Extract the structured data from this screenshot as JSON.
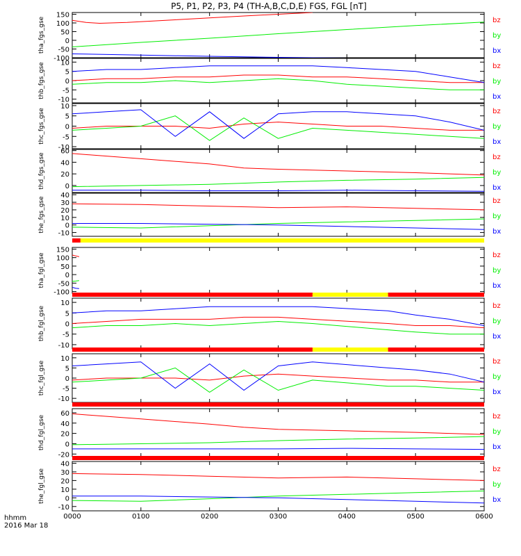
{
  "title": "P5, P1, P2, P3, P4 (TH-A,B,C,D,E) FGS, FGL [nT]",
  "footer": {
    "unit_label": "hhmm",
    "date_label": "2016 Mar 18"
  },
  "colors": {
    "bz": "#ff0000",
    "by": "#00ee00",
    "bx": "#0000ff",
    "flag_red": "#ff0000",
    "flag_yellow": "#ffff00",
    "flag_black": "#000000"
  },
  "chart_data": [
    {
      "type": "line",
      "title": "",
      "ylabel": "tha_fgs_gse",
      "ylim": [
        -100,
        160
      ],
      "yticks": [
        150,
        100,
        50,
        0,
        -50,
        -100
      ],
      "xlim": [
        0,
        600
      ],
      "series": [
        {
          "name": "bz",
          "x": [
            0,
            20,
            40,
            80,
            150,
            250,
            350
          ],
          "y": [
            115,
            103,
            98,
            103,
            118,
            140,
            160
          ]
        },
        {
          "name": "by",
          "x": [
            0,
            100,
            200,
            300,
            400,
            500,
            600
          ],
          "y": [
            -38,
            -12,
            12,
            38,
            62,
            85,
            105
          ]
        },
        {
          "name": "bx",
          "x": [
            0,
            100,
            200,
            300,
            400,
            500,
            600
          ],
          "y": [
            -78,
            -85,
            -92,
            -98,
            -102,
            -104,
            -105
          ]
        }
      ]
    },
    {
      "type": "line",
      "title": "",
      "ylabel": "thb_fgs_gse",
      "ylim": [
        -12,
        12
      ],
      "yticks": [
        10,
        5,
        0,
        -5,
        -10
      ],
      "xlim": [
        0,
        600
      ],
      "series": [
        {
          "name": "bz",
          "x": [
            0,
            50,
            100,
            150,
            200,
            250,
            300,
            350,
            400,
            450,
            500,
            550,
            600
          ],
          "y": [
            0,
            1,
            1,
            2,
            2,
            3,
            3,
            2,
            2,
            1,
            0,
            -1,
            -1
          ]
        },
        {
          "name": "by",
          "x": [
            0,
            50,
            100,
            150,
            200,
            250,
            300,
            350,
            400,
            450,
            500,
            550,
            600
          ],
          "y": [
            -2,
            -1,
            -1,
            0,
            -1,
            0,
            1,
            0,
            -2,
            -3,
            -4,
            -5,
            -5
          ]
        },
        {
          "name": "bx",
          "x": [
            0,
            50,
            100,
            150,
            200,
            250,
            300,
            350,
            400,
            450,
            500,
            550,
            600
          ],
          "y": [
            5,
            6,
            6,
            7,
            8,
            8,
            8,
            8,
            7,
            6,
            5,
            2,
            -1
          ]
        }
      ]
    },
    {
      "type": "line",
      "title": "",
      "ylabel": "thc_fgs_gse",
      "ylim": [
        -11,
        11
      ],
      "yticks": [
        10,
        5,
        0,
        -5,
        -10
      ],
      "xlim": [
        0,
        600
      ],
      "series": [
        {
          "name": "bz",
          "x": [
            0,
            50,
            100,
            150,
            200,
            250,
            300,
            350,
            400,
            450,
            500,
            550,
            600
          ],
          "y": [
            -1,
            0,
            0,
            0,
            -1,
            1,
            2,
            1,
            0,
            0,
            -1,
            -2,
            -2
          ]
        },
        {
          "name": "by",
          "x": [
            0,
            50,
            100,
            150,
            200,
            250,
            300,
            350,
            400,
            450,
            500,
            550,
            600
          ],
          "y": [
            -2,
            -1,
            0,
            5,
            -7,
            4,
            -6,
            -1,
            -2,
            -3,
            -4,
            -5,
            -6
          ]
        },
        {
          "name": "bx",
          "x": [
            0,
            50,
            100,
            150,
            200,
            250,
            300,
            350,
            400,
            450,
            500,
            550,
            600
          ],
          "y": [
            6,
            7,
            8,
            -5,
            7,
            -6,
            6,
            7,
            7,
            6,
            5,
            2,
            -2
          ]
        }
      ]
    },
    {
      "type": "line",
      "title": "",
      "ylabel": "thd_fgs_gse",
      "ylim": [
        -12,
        62
      ],
      "yticks": [
        60,
        40,
        20,
        0
      ],
      "xlim": [
        0,
        600
      ],
      "series": [
        {
          "name": "bz",
          "x": [
            0,
            100,
            200,
            250,
            300,
            400,
            500,
            600
          ],
          "y": [
            55,
            46,
            37,
            30,
            28,
            25,
            22,
            18
          ]
        },
        {
          "name": "by",
          "x": [
            0,
            100,
            200,
            300,
            400,
            500,
            600
          ],
          "y": [
            -2,
            0,
            2,
            6,
            9,
            11,
            14
          ]
        },
        {
          "name": "bx",
          "x": [
            0,
            100,
            200,
            300,
            400,
            500,
            600
          ],
          "y": [
            -8,
            -8,
            -9,
            -9,
            -8,
            -9,
            -10
          ]
        }
      ]
    },
    {
      "type": "line",
      "title": "",
      "ylabel": "the_fgs_gse",
      "ylim": [
        -15,
        42
      ],
      "yticks": [
        40,
        30,
        20,
        10,
        0,
        -10
      ],
      "xlim": [
        0,
        600
      ],
      "series": [
        {
          "name": "bz",
          "x": [
            0,
            100,
            200,
            300,
            400,
            500,
            600
          ],
          "y": [
            28,
            27,
            25,
            23,
            24,
            22,
            20
          ]
        },
        {
          "name": "by",
          "x": [
            0,
            100,
            200,
            300,
            400,
            500,
            600
          ],
          "y": [
            -3,
            -4,
            -1,
            2,
            4,
            6,
            8
          ]
        },
        {
          "name": "bx",
          "x": [
            0,
            100,
            200,
            300,
            400,
            500,
            600
          ],
          "y": [
            2,
            2,
            1,
            0,
            -2,
            -4,
            -6
          ]
        }
      ]
    },
    {
      "type": "line",
      "title": "",
      "ylabel": "tha_fgl_gse",
      "ylim": [
        -110,
        160
      ],
      "yticks": [
        150,
        100,
        50,
        0,
        -50,
        -100
      ],
      "xlim": [
        0,
        600
      ],
      "flags": [
        {
          "x0": 0,
          "x1": 12,
          "color": "red"
        },
        {
          "x0": 12,
          "x1": 600,
          "color": "yellow"
        }
      ],
      "series": [
        {
          "name": "bz",
          "x": [
            0,
            5,
            10
          ],
          "y": [
            115,
            110,
            105
          ]
        },
        {
          "name": "by",
          "x": [
            0,
            5,
            10
          ],
          "y": [
            -40,
            -38,
            -35
          ]
        },
        {
          "name": "bx",
          "x": [
            0,
            5,
            10
          ],
          "y": [
            -75,
            -80,
            -82
          ]
        }
      ]
    },
    {
      "type": "line",
      "title": "",
      "ylabel": "thb_fgl_gse",
      "ylim": [
        -12,
        12
      ],
      "yticks": [
        10,
        5,
        0,
        -5,
        -10
      ],
      "xlim": [
        0,
        600
      ],
      "flags": [
        {
          "x0": 0,
          "x1": 350,
          "color": "red"
        },
        {
          "x0": 350,
          "x1": 460,
          "color": "yellow"
        },
        {
          "x0": 460,
          "x1": 600,
          "color": "red"
        }
      ],
      "series": [
        {
          "name": "bz",
          "x": [
            0,
            50,
            100,
            150,
            200,
            250,
            300,
            350,
            460,
            500,
            550,
            600
          ],
          "y": [
            0,
            1,
            2,
            2,
            2,
            3,
            3,
            2,
            0,
            -1,
            -1,
            -2
          ]
        },
        {
          "name": "by",
          "x": [
            0,
            50,
            100,
            150,
            200,
            250,
            300,
            350,
            460,
            500,
            550,
            600
          ],
          "y": [
            -2,
            -1,
            -1,
            0,
            -1,
            0,
            1,
            0,
            -3,
            -4,
            -5,
            -5
          ]
        },
        {
          "name": "bx",
          "x": [
            0,
            50,
            100,
            150,
            200,
            250,
            300,
            350,
            460,
            500,
            550,
            600
          ],
          "y": [
            5,
            6,
            6,
            7,
            8,
            8,
            8,
            8,
            6,
            4,
            2,
            -1
          ]
        }
      ]
    },
    {
      "type": "line",
      "title": "",
      "ylabel": "thc_fgl_gse",
      "ylim": [
        -12,
        12
      ],
      "yticks": [
        10,
        5,
        0,
        -5,
        -10
      ],
      "xlim": [
        0,
        600
      ],
      "flags": [
        {
          "x0": 0,
          "x1": 350,
          "color": "red"
        },
        {
          "x0": 350,
          "x1": 460,
          "color": "yellow"
        },
        {
          "x0": 460,
          "x1": 600,
          "color": "red"
        }
      ],
      "series": [
        {
          "name": "bz",
          "x": [
            0,
            50,
            100,
            150,
            200,
            250,
            300,
            350,
            460,
            500,
            550,
            600
          ],
          "y": [
            -1,
            0,
            0,
            0,
            -1,
            1,
            2,
            1,
            -1,
            -1,
            -2,
            -2
          ]
        },
        {
          "name": "by",
          "x": [
            0,
            50,
            100,
            150,
            200,
            250,
            300,
            350,
            460,
            500,
            550,
            600
          ],
          "y": [
            -2,
            -1,
            0,
            5,
            -7,
            4,
            -6,
            -1,
            -4,
            -4,
            -5,
            -6
          ]
        },
        {
          "name": "bx",
          "x": [
            0,
            50,
            100,
            150,
            200,
            250,
            300,
            350,
            460,
            500,
            550,
            600
          ],
          "y": [
            6,
            7,
            8,
            -5,
            7,
            -6,
            6,
            8,
            5,
            4,
            2,
            -2
          ]
        }
      ]
    },
    {
      "type": "line",
      "title": "",
      "ylabel": "thd_fgl_gse",
      "ylim": [
        -25,
        68
      ],
      "yticks": [
        60,
        40,
        20,
        0,
        -20
      ],
      "xlim": [
        0,
        600
      ],
      "flags": [
        {
          "x0": 0,
          "x1": 600,
          "color": "red"
        }
      ],
      "series": [
        {
          "name": "bz",
          "x": [
            0,
            100,
            200,
            250,
            300,
            400,
            500,
            600
          ],
          "y": [
            58,
            48,
            38,
            32,
            28,
            25,
            22,
            18
          ]
        },
        {
          "name": "by",
          "x": [
            0,
            100,
            200,
            300,
            400,
            500,
            600
          ],
          "y": [
            -2,
            0,
            2,
            6,
            9,
            11,
            14
          ]
        },
        {
          "name": "bx",
          "x": [
            0,
            100,
            200,
            300,
            400,
            500,
            600
          ],
          "y": [
            -10,
            -10,
            -10,
            -10,
            -9,
            -10,
            -11
          ]
        }
      ]
    },
    {
      "type": "line",
      "title": "",
      "ylabel": "the_fgl_gse",
      "ylim": [
        -15,
        42
      ],
      "yticks": [
        40,
        30,
        20,
        10,
        0,
        -10
      ],
      "xlim": [
        0,
        600
      ],
      "flags": [
        {
          "x0": 0,
          "x1": 600,
          "color": "red"
        }
      ],
      "series": [
        {
          "name": "bz",
          "x": [
            0,
            100,
            200,
            300,
            400,
            500,
            600
          ],
          "y": [
            28,
            27,
            25,
            23,
            24,
            22,
            20
          ]
        },
        {
          "name": "by",
          "x": [
            0,
            100,
            200,
            300,
            400,
            500,
            600
          ],
          "y": [
            -3,
            -4,
            -1,
            2,
            4,
            6,
            8
          ]
        },
        {
          "name": "bx",
          "x": [
            0,
            100,
            200,
            300,
            400,
            500,
            600
          ],
          "y": [
            2,
            2,
            1,
            0,
            -2,
            -4,
            -6
          ]
        }
      ]
    }
  ],
  "x_axis": {
    "ticks": [
      0,
      100,
      200,
      300,
      400,
      500,
      600
    ],
    "tick_labels": [
      "0000",
      "0100",
      "0200",
      "0300",
      "0400",
      "0500",
      "0600"
    ]
  }
}
